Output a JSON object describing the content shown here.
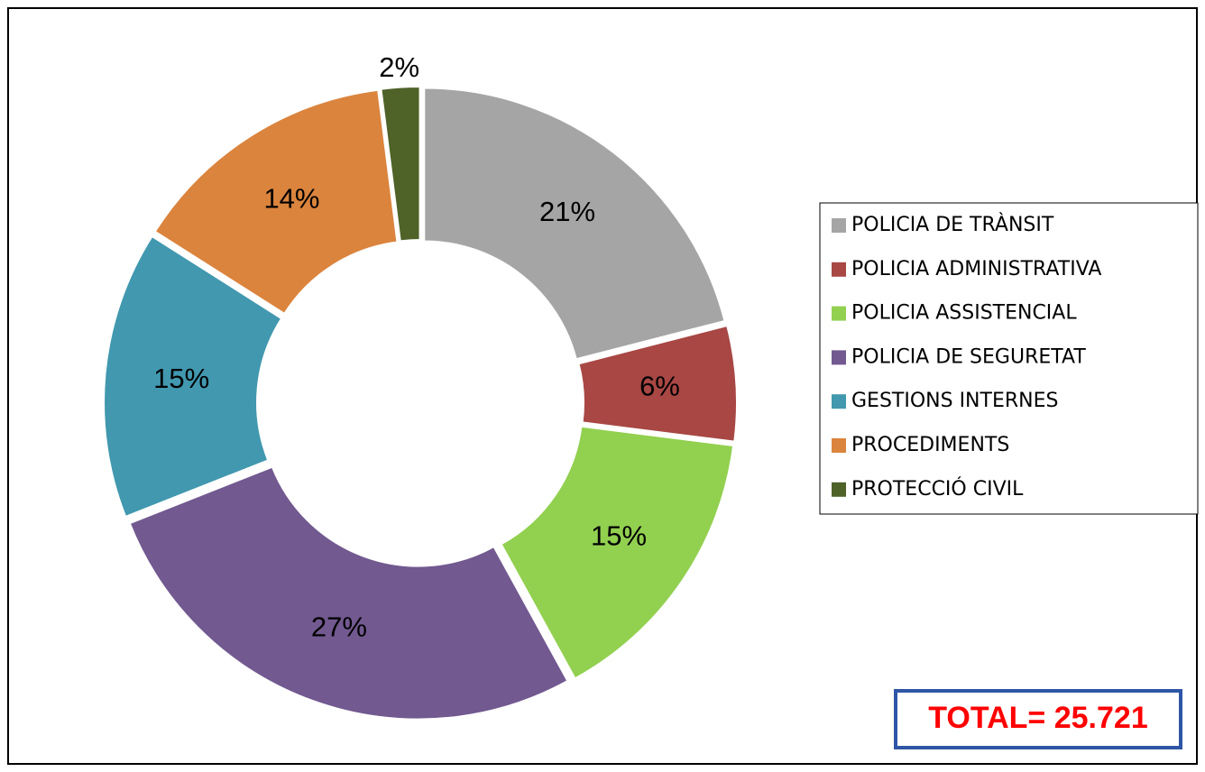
{
  "chart_data": {
    "type": "donut",
    "categories": [
      "POLICIA DE TRÀNSIT",
      "POLICIA ADMINISTRATIVA",
      "POLICIA ASSISTENCIAL",
      "POLICIA DE SEGURETAT",
      "GESTIONS INTERNES",
      "PROCEDIMENTS",
      "PROTECCIÓ CIVIL"
    ],
    "values": [
      21,
      6,
      15,
      27,
      15,
      14,
      2
    ],
    "value_labels": [
      "21%",
      "6%",
      "15%",
      "27%",
      "15%",
      "14%",
      "2%"
    ],
    "colors": [
      "#a5a5a5",
      "#a84744",
      "#92d050",
      "#725990",
      "#4198af",
      "#db843d",
      "#4f6228"
    ],
    "legend": "right",
    "annotation": "TOTAL= 25.721"
  }
}
